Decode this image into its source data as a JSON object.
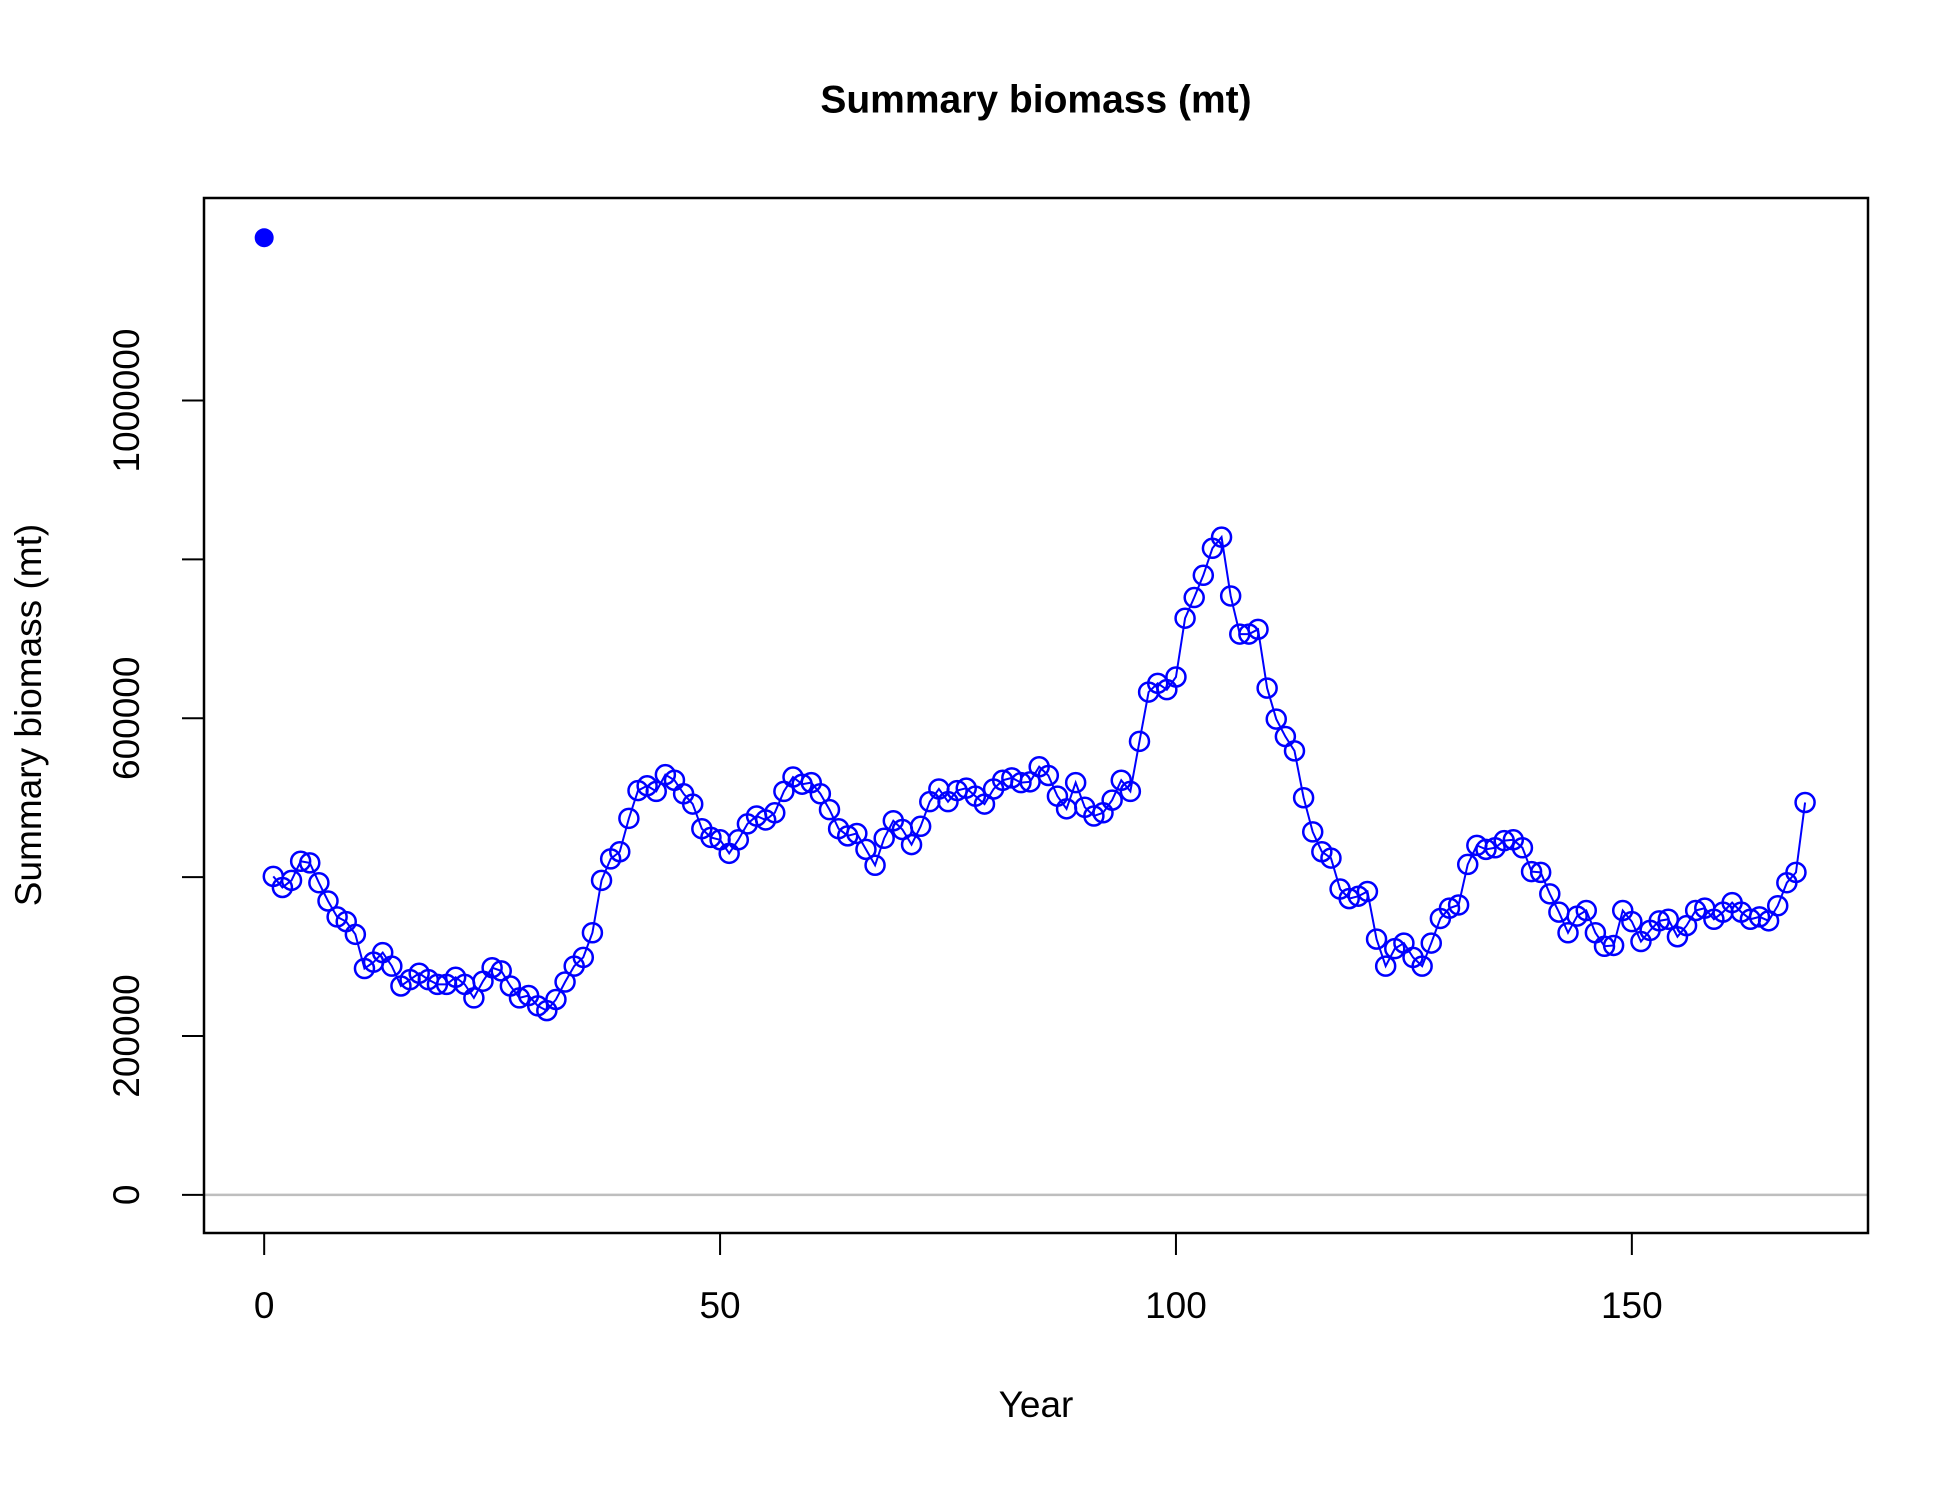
{
  "chart_data": {
    "type": "line",
    "title": "Summary biomass (mt)",
    "xlabel": "Year",
    "ylabel": "Summary biomass (mt)",
    "xlim": [
      -6.6,
      175.9
    ],
    "ylim": [
      -48000,
      1255000
    ],
    "xticks": [
      0,
      50,
      100,
      150
    ],
    "yticks": [
      0,
      200000,
      {
        "value": 400000,
        "label": null
      },
      600000,
      {
        "value": 800000,
        "label": null
      },
      1000000
    ],
    "reference_line": {
      "y": 0,
      "color": "#bebebe"
    },
    "series": [
      {
        "color": "#0000ff",
        "marker": "filled",
        "line": false,
        "x": [
          0
        ],
        "values": [
          1205000
        ]
      },
      {
        "color": "#0000ff",
        "marker": "open",
        "line": true,
        "x": [
          1,
          2,
          3,
          4,
          5,
          6,
          7,
          8,
          9,
          10,
          11,
          12,
          13,
          14,
          15,
          16,
          17,
          18,
          19,
          20,
          21,
          22,
          23,
          24,
          25,
          26,
          27,
          28,
          29,
          30,
          31,
          32,
          33,
          34,
          35,
          36,
          37,
          38,
          39,
          40,
          41,
          42,
          43,
          44,
          45,
          46,
          47,
          48,
          49,
          50,
          51,
          52,
          53,
          54,
          55,
          56,
          57,
          58,
          59,
          60,
          61,
          62,
          63,
          64,
          65,
          66,
          67,
          68,
          69,
          70,
          71,
          72,
          73,
          74,
          75,
          76,
          77,
          78,
          79,
          80,
          81,
          82,
          83,
          84,
          85,
          86,
          87,
          88,
          89,
          90,
          91,
          92,
          93,
          94,
          95,
          96,
          97,
          98,
          99,
          100,
          101,
          102,
          103,
          104,
          105,
          106,
          107,
          108,
          109,
          110,
          111,
          112,
          113,
          114,
          115,
          116,
          117,
          118,
          119,
          120,
          121,
          122,
          123,
          124,
          125,
          126,
          127,
          128,
          129,
          130,
          131,
          132,
          133,
          134,
          135,
          136,
          137,
          138,
          139,
          140,
          141,
          142,
          143,
          144,
          145,
          146,
          147,
          148,
          149,
          150,
          151,
          152,
          153,
          154,
          155,
          156,
          157,
          158,
          159,
          160,
          161,
          162,
          163,
          164,
          165,
          166,
          167,
          168,
          169
        ],
        "values": [
          401000,
          387000,
          396000,
          420000,
          418000,
          393000,
          370000,
          350000,
          344000,
          328000,
          285000,
          293000,
          305000,
          288000,
          263000,
          271000,
          279000,
          271000,
          265000,
          265000,
          274000,
          265000,
          248000,
          269000,
          286000,
          282000,
          263000,
          248000,
          251000,
          238000,
          232000,
          246000,
          268000,
          288000,
          299000,
          330000,
          396000,
          423000,
          432000,
          474000,
          509000,
          515000,
          508000,
          529000,
          522000,
          505000,
          492000,
          461000,
          450000,
          447000,
          430000,
          447000,
          467000,
          477000,
          472000,
          481000,
          508000,
          526000,
          517000,
          519000,
          505000,
          485000,
          461000,
          452000,
          455000,
          435000,
          415000,
          449000,
          471000,
          460000,
          441000,
          464000,
          495000,
          511000,
          495000,
          509000,
          512000,
          502000,
          492000,
          511000,
          522000,
          525000,
          519000,
          520000,
          539000,
          528000,
          502000,
          486000,
          519000,
          488000,
          477000,
          481000,
          497000,
          522000,
          508000,
          571000,
          633000,
          644000,
          636000,
          652000,
          726000,
          752000,
          780000,
          814000,
          828000,
          754000,
          706000,
          706000,
          712000,
          638000,
          599000,
          577000,
          559000,
          500000,
          457000,
          432000,
          424000,
          385000,
          373000,
          376000,
          382000,
          322000,
          288000,
          310000,
          317000,
          299000,
          288000,
          317000,
          348000,
          361000,
          365000,
          416000,
          440000,
          435000,
          437000,
          446000,
          447000,
          437000,
          407000,
          406000,
          379000,
          356000,
          330000,
          351000,
          358000,
          330000,
          313000,
          314000,
          358000,
          344000,
          319000,
          333000,
          345000,
          347000,
          325000,
          339000,
          358000,
          361000,
          347000,
          356000,
          368000,
          356000,
          347000,
          350000,
          345000,
          364000,
          393000,
          406000,
          494000
        ]
      }
    ]
  }
}
